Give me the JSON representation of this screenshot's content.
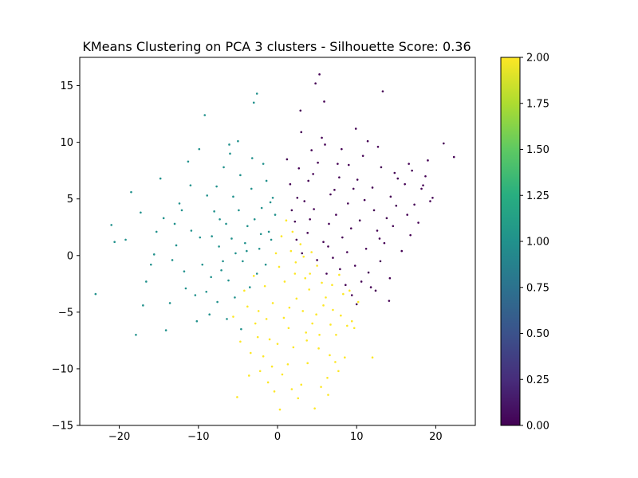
{
  "chart_data": {
    "type": "scatter",
    "title": "KMeans Clustering on PCA 3 clusters - Silhouette Score: 0.36",
    "xlabel": "",
    "ylabel": "",
    "xlim": [
      -25,
      25
    ],
    "ylim": [
      -15,
      17.5
    ],
    "xticks": [
      -20,
      -10,
      0,
      10,
      20
    ],
    "yticks": [
      -15,
      -10,
      -5,
      0,
      5,
      10,
      15
    ],
    "grid": false,
    "colorbar": {
      "range": [
        0.0,
        2.0
      ],
      "ticks": [
        "0.00",
        "0.25",
        "0.50",
        "0.75",
        "1.00",
        "1.25",
        "1.50",
        "1.75",
        "2.00"
      ],
      "colormap": "viridis"
    },
    "series": [
      {
        "cluster": 0,
        "color": "#440154",
        "points": [
          [
            1.2,
            8.5
          ],
          [
            2.5,
            5.1
          ],
          [
            3.0,
            10.9
          ],
          [
            3.9,
            6.6
          ],
          [
            4.5,
            7.2
          ],
          [
            5.1,
            8.2
          ],
          [
            6.0,
            9.8
          ],
          [
            7.2,
            5.8
          ],
          [
            8.1,
            9.4
          ],
          [
            9.0,
            8.0
          ],
          [
            10.1,
            6.7
          ],
          [
            11.4,
            10.1
          ],
          [
            12.2,
            4.0
          ],
          [
            13.1,
            7.8
          ],
          [
            14.3,
            5.2
          ],
          [
            15.2,
            6.8
          ],
          [
            16.4,
            3.6
          ],
          [
            17.0,
            7.5
          ],
          [
            18.2,
            5.9
          ],
          [
            19.0,
            8.4
          ],
          [
            2.2,
            3.0
          ],
          [
            3.8,
            2.0
          ],
          [
            4.6,
            4.1
          ],
          [
            5.8,
            1.2
          ],
          [
            6.5,
            2.8
          ],
          [
            7.4,
            3.6
          ],
          [
            8.2,
            1.6
          ],
          [
            9.3,
            2.4
          ],
          [
            10.4,
            3.1
          ],
          [
            11.2,
            0.6
          ],
          [
            12.6,
            2.2
          ],
          [
            13.5,
            1.1
          ],
          [
            14.6,
            2.6
          ],
          [
            15.7,
            0.4
          ],
          [
            16.8,
            1.8
          ],
          [
            17.3,
            4.5
          ],
          [
            2.9,
            12.8
          ],
          [
            4.8,
            15.2
          ],
          [
            5.3,
            16.0
          ],
          [
            5.9,
            13.6
          ],
          [
            13.3,
            14.5
          ],
          [
            8.8,
            0.3
          ],
          [
            9.8,
            -0.9
          ],
          [
            10.6,
            -2.3
          ],
          [
            11.5,
            -1.5
          ],
          [
            12.4,
            -3.1
          ],
          [
            13.0,
            -0.5
          ],
          [
            14.2,
            -2.0
          ],
          [
            10.0,
            -4.3
          ],
          [
            14.1,
            -4.0
          ],
          [
            7.9,
            -1.2
          ],
          [
            6.4,
            0.8
          ],
          [
            1.6,
            6.3
          ],
          [
            2.7,
            7.7
          ],
          [
            3.4,
            4.8
          ],
          [
            4.1,
            3.2
          ],
          [
            6.7,
            5.4
          ],
          [
            7.8,
            6.9
          ],
          [
            8.9,
            4.6
          ],
          [
            9.6,
            5.9
          ],
          [
            11.0,
            4.9
          ],
          [
            12.0,
            6.0
          ],
          [
            13.8,
            3.3
          ],
          [
            15.0,
            4.4
          ],
          [
            16.1,
            6.3
          ],
          [
            17.8,
            2.9
          ],
          [
            18.7,
            7.0
          ],
          [
            19.6,
            5.1
          ],
          [
            21.0,
            9.9
          ],
          [
            22.3,
            8.7
          ],
          [
            1.8,
            4.0
          ],
          [
            2.4,
            1.4
          ],
          [
            3.1,
            0.2
          ],
          [
            5.0,
            -0.4
          ],
          [
            6.2,
            -1.6
          ],
          [
            7.0,
            -0.2
          ],
          [
            8.6,
            -2.6
          ],
          [
            9.4,
            -3.5
          ],
          [
            11.8,
            -2.8
          ],
          [
            12.9,
            1.5
          ],
          [
            4.3,
            9.3
          ],
          [
            5.6,
            10.4
          ],
          [
            7.6,
            8.1
          ],
          [
            9.9,
            11.2
          ],
          [
            10.8,
            8.8
          ],
          [
            12.7,
            9.6
          ],
          [
            14.8,
            7.3
          ],
          [
            16.6,
            8.1
          ],
          [
            18.4,
            6.2
          ],
          [
            19.3,
            4.8
          ]
        ]
      },
      {
        "cluster": 1,
        "color": "#21918c",
        "points": [
          [
            -23.0,
            -3.4
          ],
          [
            -21.0,
            2.7
          ],
          [
            -20.6,
            1.2
          ],
          [
            -19.2,
            1.4
          ],
          [
            -18.5,
            5.6
          ],
          [
            -17.9,
            -7.0
          ],
          [
            -17.3,
            3.8
          ],
          [
            -16.6,
            -2.3
          ],
          [
            -15.6,
            0.1
          ],
          [
            -14.8,
            6.8
          ],
          [
            -14.1,
            -6.6
          ],
          [
            -13.6,
            -4.2
          ],
          [
            -13.0,
            2.8
          ],
          [
            -12.4,
            4.6
          ],
          [
            -11.8,
            -1.4
          ],
          [
            -11.0,
            6.2
          ],
          [
            -10.4,
            -3.5
          ],
          [
            -9.8,
            1.6
          ],
          [
            -9.2,
            12.4
          ],
          [
            -8.6,
            -5.2
          ],
          [
            -8.0,
            3.9
          ],
          [
            -7.4,
            0.8
          ],
          [
            -6.8,
            7.8
          ],
          [
            -6.2,
            -2.2
          ],
          [
            -5.6,
            5.2
          ],
          [
            -5.0,
            10.1
          ],
          [
            -4.4,
            -0.5
          ],
          [
            -3.8,
            2.6
          ],
          [
            -3.2,
            8.6
          ],
          [
            -2.6,
            -1.6
          ],
          [
            -2.0,
            4.2
          ],
          [
            -1.4,
            6.6
          ],
          [
            -0.8,
            1.4
          ],
          [
            -0.3,
            3.6
          ],
          [
            -12.8,
            0.9
          ],
          [
            -10.9,
            2.2
          ],
          [
            -9.5,
            -0.8
          ],
          [
            -8.3,
            1.7
          ],
          [
            -7.1,
            -1.3
          ],
          [
            -6.5,
            2.8
          ],
          [
            -5.3,
            0.2
          ],
          [
            -4.1,
            1.1
          ],
          [
            -3.5,
            -2.8
          ],
          [
            -2.3,
            0.6
          ],
          [
            -1.1,
            2.1
          ],
          [
            -7.7,
            6.1
          ],
          [
            -6.0,
            9.0
          ],
          [
            -4.7,
            7.1
          ],
          [
            -3.3,
            5.9
          ],
          [
            -1.8,
            8.1
          ],
          [
            -0.6,
            5.1
          ],
          [
            -11.3,
            8.3
          ],
          [
            -9.9,
            9.4
          ],
          [
            -8.9,
            5.3
          ],
          [
            -10.2,
            -5.8
          ],
          [
            -9.0,
            -3.2
          ],
          [
            -7.6,
            -4.1
          ],
          [
            -6.4,
            -5.6
          ],
          [
            -5.4,
            -3.7
          ],
          [
            -4.6,
            -6.5
          ],
          [
            -15.3,
            2.1
          ],
          [
            -16.0,
            -0.8
          ],
          [
            -17.0,
            -4.4
          ],
          [
            -13.3,
            -0.4
          ],
          [
            -12.1,
            4.0
          ],
          [
            -14.4,
            3.3
          ],
          [
            -11.6,
            -2.9
          ],
          [
            -3.0,
            13.5
          ],
          [
            -2.6,
            14.3
          ],
          [
            -6.1,
            9.8
          ],
          [
            -4.9,
            4.0
          ],
          [
            -3.9,
            0.4
          ],
          [
            -2.9,
            3.2
          ],
          [
            -2.1,
            1.9
          ],
          [
            -1.5,
            -0.8
          ],
          [
            -0.9,
            4.7
          ],
          [
            -8.4,
            -1.9
          ],
          [
            -7.3,
            3.2
          ],
          [
            -6.9,
            -0.5
          ],
          [
            -5.8,
            1.5
          ]
        ]
      },
      {
        "cluster": 2,
        "color": "#fde725",
        "points": [
          [
            -5.6,
            -5.4
          ],
          [
            -5.1,
            -12.5
          ],
          [
            -4.2,
            -3.1
          ],
          [
            -3.4,
            -8.6
          ],
          [
            -2.8,
            -6.0
          ],
          [
            -2.2,
            -10.2
          ],
          [
            -1.6,
            -2.7
          ],
          [
            -1.0,
            -7.4
          ],
          [
            -0.4,
            -12.0
          ],
          [
            0.2,
            -1.0
          ],
          [
            0.8,
            -5.5
          ],
          [
            1.3,
            -9.6
          ],
          [
            1.9,
            2.1
          ],
          [
            2.4,
            -3.8
          ],
          [
            3.0,
            -11.4
          ],
          [
            3.6,
            -6.8
          ],
          [
            4.1,
            -1.6
          ],
          [
            4.7,
            -13.5
          ],
          [
            5.2,
            -8.2
          ],
          [
            5.8,
            -4.4
          ],
          [
            6.3,
            -10.8
          ],
          [
            6.9,
            -2.6
          ],
          [
            7.4,
            -7.0
          ],
          [
            8.0,
            -5.3
          ],
          [
            8.5,
            -9.0
          ],
          [
            9.1,
            -3.1
          ],
          [
            9.7,
            -6.4
          ],
          [
            12.0,
            -9.0
          ],
          [
            0.5,
            1.7
          ],
          [
            1.1,
            3.1
          ],
          [
            1.7,
            0.4
          ],
          [
            2.3,
            -0.6
          ],
          [
            2.9,
            1.0
          ],
          [
            3.5,
            -2.0
          ],
          [
            4.3,
            0.3
          ],
          [
            5.0,
            -0.9
          ],
          [
            6.1,
            -3.7
          ],
          [
            7.0,
            -4.8
          ],
          [
            7.8,
            -1.7
          ],
          [
            8.8,
            -6.2
          ],
          [
            -3.8,
            -4.5
          ],
          [
            -3.0,
            -1.8
          ],
          [
            -2.4,
            -4.9
          ],
          [
            -1.8,
            -8.9
          ],
          [
            -1.2,
            -11.2
          ],
          [
            -0.6,
            -4.2
          ],
          [
            0.0,
            -7.8
          ],
          [
            0.6,
            -10.5
          ],
          [
            1.4,
            -6.4
          ],
          [
            2.0,
            -8.1
          ],
          [
            2.6,
            -12.6
          ],
          [
            3.2,
            -4.9
          ],
          [
            3.8,
            -9.5
          ],
          [
            4.4,
            -6.0
          ],
          [
            5.5,
            -11.6
          ],
          [
            6.6,
            -8.8
          ],
          [
            7.7,
            -10.2
          ],
          [
            8.3,
            -3.4
          ],
          [
            9.4,
            -5.8
          ],
          [
            10.2,
            -4.1
          ],
          [
            -0.2,
            0.2
          ],
          [
            0.9,
            -2.3
          ],
          [
            1.5,
            -4.6
          ],
          [
            2.2,
            -1.6
          ],
          [
            3.3,
            -0.1
          ],
          [
            4.0,
            -3.0
          ],
          [
            4.9,
            -5.2
          ],
          [
            5.6,
            -2.4
          ],
          [
            6.7,
            -6.1
          ],
          [
            7.3,
            -9.4
          ],
          [
            -4.7,
            -7.6
          ],
          [
            -3.6,
            -10.6
          ],
          [
            -2.5,
            -7.2
          ],
          [
            -1.4,
            -5.6
          ],
          [
            -0.7,
            -9.8
          ],
          [
            0.3,
            -13.6
          ],
          [
            1.8,
            -11.8
          ],
          [
            3.7,
            -7.5
          ],
          [
            5.3,
            -7.0
          ],
          [
            6.4,
            -12.3
          ]
        ]
      }
    ]
  }
}
